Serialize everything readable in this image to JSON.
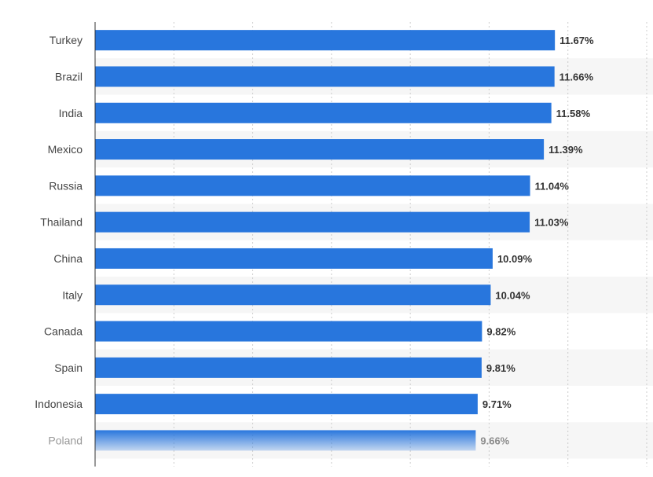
{
  "chart_data": {
    "type": "bar",
    "orientation": "horizontal",
    "categories": [
      "Turkey",
      "Brazil",
      "India",
      "Mexico",
      "Russia",
      "Thailand",
      "China",
      "Italy",
      "Canada",
      "Spain",
      "Indonesia",
      "Poland"
    ],
    "values": [
      11.67,
      11.66,
      11.58,
      11.39,
      11.04,
      11.03,
      10.09,
      10.04,
      9.82,
      9.81,
      9.71,
      9.66
    ],
    "value_labels": [
      "11.67%",
      "11.66%",
      "11.58%",
      "11.39%",
      "11.04%",
      "11.03%",
      "10.09%",
      "10.04%",
      "9.82%",
      "9.81%",
      "9.71%",
      "9.66%"
    ],
    "xlim": [
      0,
      14
    ],
    "grid": true,
    "colors": {
      "bar": "#2876dd",
      "grid": "#cccccc",
      "band": "#f6f6f6",
      "axis": "#333333"
    },
    "title": "",
    "xlabel": "",
    "ylabel": ""
  }
}
